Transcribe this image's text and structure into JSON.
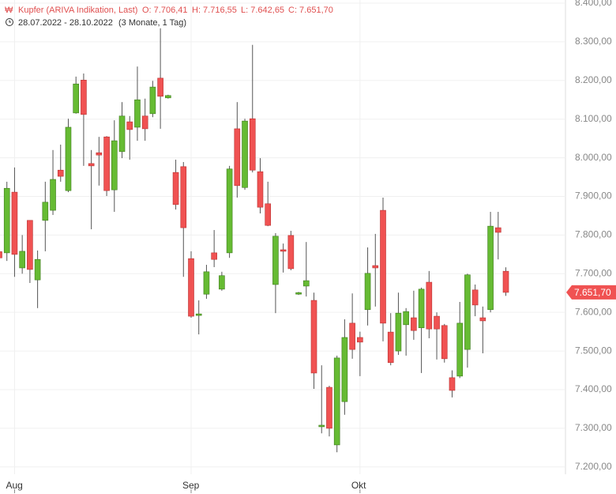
{
  "header": {
    "name": "Kupfer (ARIVA Indikation, Last)",
    "open": "O: 7.706,41",
    "high": "H: 7.716,55",
    "low": "L: 7.642,65",
    "close": "C: 7.651,70",
    "range": "28.07.2022 - 28.10.2022",
    "period": "(3 Monate, 1 Tag)"
  },
  "chart_data": {
    "type": "candlestick",
    "categories": [
      null,
      null,
      "Aug",
      null,
      null,
      null,
      null,
      null,
      null,
      null,
      null,
      null,
      null,
      null,
      null,
      null,
      null,
      null,
      null,
      null,
      null,
      null,
      null,
      null,
      null,
      "Sep",
      null,
      null,
      null,
      null,
      null,
      null,
      null,
      null,
      null,
      null,
      null,
      null,
      null,
      null,
      null,
      null,
      null,
      null,
      null,
      null,
      null,
      "Okt",
      null,
      null,
      null,
      null,
      null,
      null,
      null,
      null,
      null,
      null,
      null,
      null,
      null,
      null,
      null,
      null,
      null,
      null,
      null
    ],
    "open": [
      7757,
      7754,
      7911,
      7715,
      7838,
      7684,
      7838,
      7864,
      7968,
      7915,
      8116,
      8201,
      7985,
      8013,
      8054,
      7917,
      8016,
      8093,
      8079,
      8108,
      8114,
      8206,
      8155,
      7962,
      7977,
      7739,
      7592,
      7647,
      7754,
      7660,
      7754,
      8075,
      7923,
      8101,
      7964,
      7881,
      7672,
      7762,
      7799,
      7647,
      7668,
      7631,
      7304,
      7406,
      7257,
      7369,
      7572,
      7535,
      7607,
      7721,
      7864,
      7549,
      7500,
      7568,
      7586,
      7560,
      7678,
      7590,
      7566,
      7431,
      7435,
      7504,
      7658,
      7586,
      7607,
      7819,
      7706.41
    ],
    "high": [
      7770,
      7938,
      7975,
      7800,
      7838,
      7760,
      7938,
      8020,
      8034,
      8101,
      8210,
      8218,
      8020,
      8054,
      8056,
      8097,
      8144,
      8108,
      8236,
      8153,
      8199,
      8335,
      8163,
      7995,
      7989,
      7758,
      7631,
      7723,
      7813,
      7705,
      7979,
      8144,
      8101,
      8292,
      7999,
      7938,
      7805,
      7778,
      7811,
      7653,
      7782,
      7651,
      7463,
      7410,
      7488,
      7582,
      7649,
      7550,
      7768,
      7803,
      7897,
      7598,
      7651,
      7611,
      7656,
      7664,
      7707,
      7600,
      7570,
      7450,
      7627,
      7700,
      7672,
      7615,
      7860,
      7860,
      7716.55
    ],
    "low": [
      7730,
      7733,
      7692,
      7700,
      7676,
      7611,
      7758,
      7852,
      7938,
      7911,
      8114,
      7979,
      7815,
      7928,
      7901,
      7860,
      7999,
      7995,
      8044,
      8044,
      8105,
      8075,
      8153,
      7866,
      7692,
      7586,
      7543,
      7635,
      7717,
      7656,
      7741,
      7897,
      7917,
      7962,
      7856,
      7823,
      7598,
      7703,
      7709,
      7645,
      7641,
      7402,
      7287,
      7279,
      7238,
      7335,
      7480,
      7435,
      7566,
      7615,
      7525,
      7463,
      7490,
      7488,
      7529,
      7443,
      7533,
      7478,
      7470,
      7380,
      7430,
      7457,
      7590,
      7494,
      7600,
      7737,
      7642.65
    ],
    "close": [
      7741,
      7921,
      7750,
      7758,
      7711,
      7737,
      7885,
      7944,
      7952,
      8079,
      8191,
      8112,
      7979,
      8007,
      7915,
      8044,
      8108,
      8073,
      8150,
      8075,
      8183,
      8159,
      8161,
      7879,
      7819,
      7590,
      7596,
      7705,
      7737,
      7695,
      7971,
      7928,
      8095,
      7968,
      7872,
      7825,
      7797,
      7758,
      7713,
      7651,
      7682,
      7443,
      7308,
      7300,
      7482,
      7535,
      7504,
      7523,
      7701,
      7715,
      7572,
      7470,
      7598,
      7602,
      7553,
      7660,
      7557,
      7557,
      7480,
      7398,
      7572,
      7697,
      7619,
      7578,
      7823,
      7807,
      7651.7
    ],
    "last_label": "7.651,70",
    "up_color": "#66bb33",
    "down_color": "#f05252",
    "ylim": [
      7175,
      8400
    ],
    "yticks": [
      {
        "value": 7200,
        "label": "7.200,00"
      },
      {
        "value": 7300,
        "label": "7.300,00"
      },
      {
        "value": 7400,
        "label": "7.400,00"
      },
      {
        "value": 7500,
        "label": "7.500,00"
      },
      {
        "value": 7600,
        "label": "7.600,00"
      },
      {
        "value": 7700,
        "label": "7.700,00"
      },
      {
        "value": 7800,
        "label": "7.800,00"
      },
      {
        "value": 7900,
        "label": "7.900,00"
      },
      {
        "value": 8000,
        "label": "8.000,00"
      },
      {
        "value": 8100,
        "label": "8.100,00"
      },
      {
        "value": 8200,
        "label": "8.200,00"
      },
      {
        "value": 8300,
        "label": "8.300,00"
      },
      {
        "value": 8400,
        "label": "8.400,00"
      }
    ],
    "grid": true
  }
}
